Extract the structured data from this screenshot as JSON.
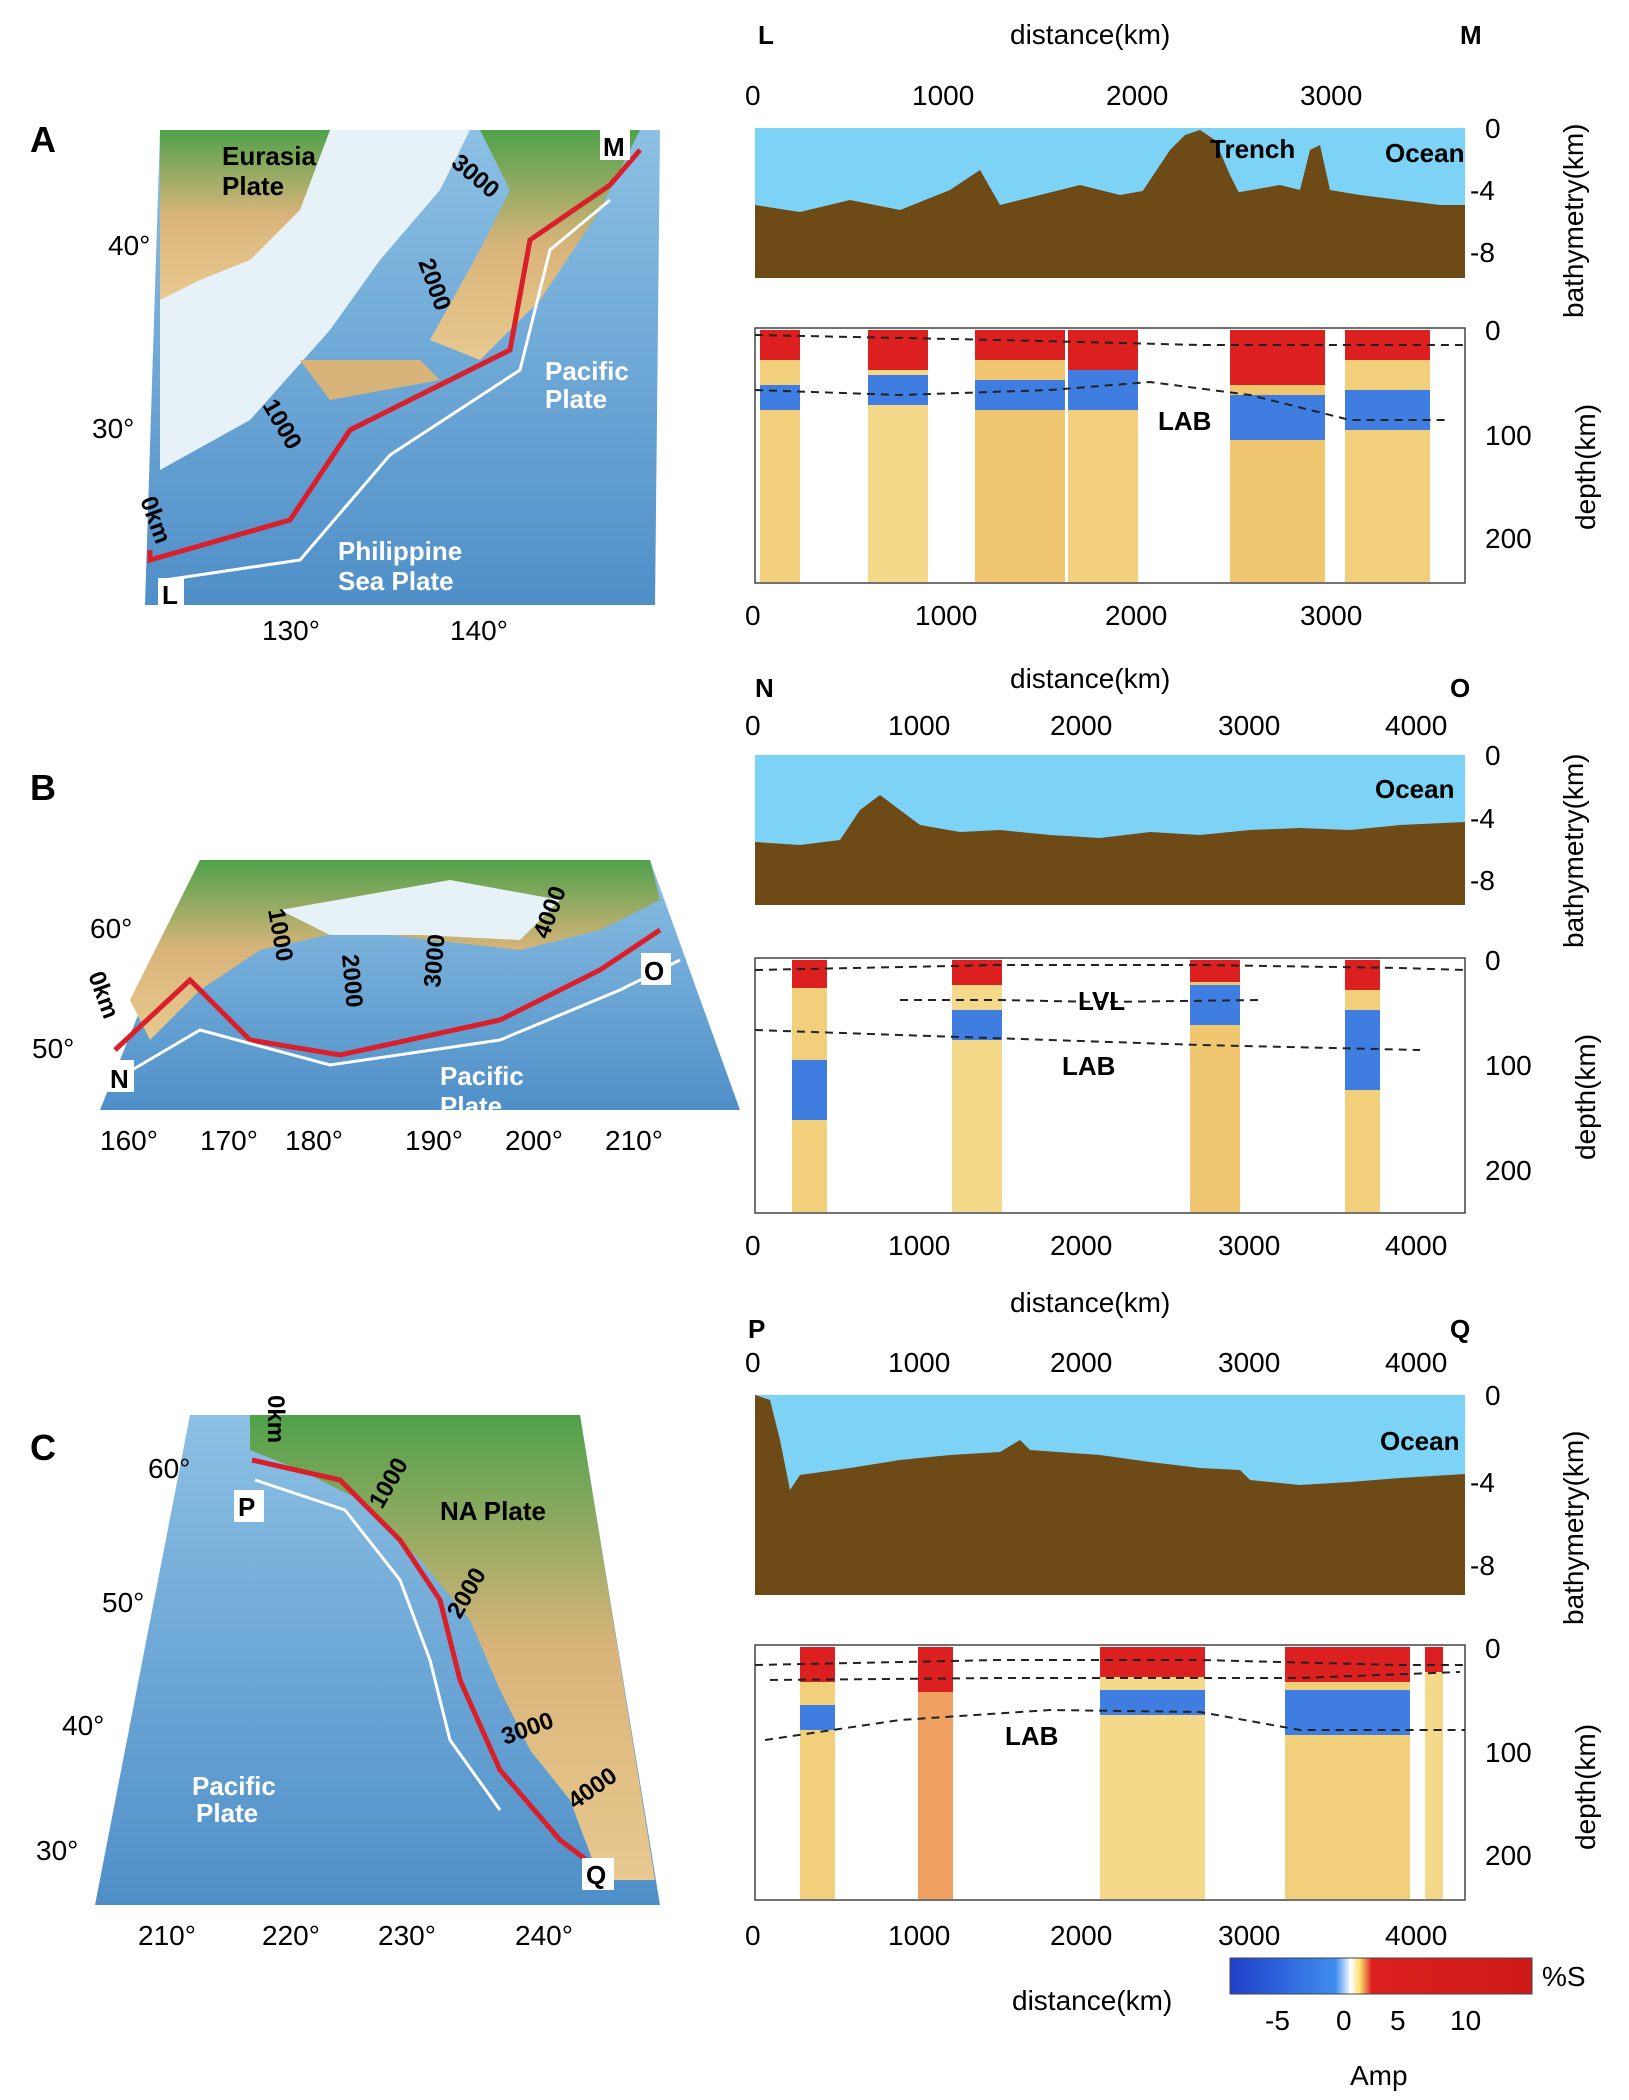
{
  "colors": {
    "water": "#7dd3f5",
    "earth": "#6e4a16",
    "ocean_map": "#6fa8d6",
    "land_map": "#d8b97a",
    "trench": "#d81f2a",
    "pos": "#dc1f1f",
    "neg": "#2b57d6"
  },
  "panels": [
    {
      "letter": "A",
      "map": {
        "lat_ticks": [
          "40°",
          "30°"
        ],
        "lon_ticks": [
          "130°",
          "140°"
        ],
        "plate_labels": [
          "Eurasia",
          "Plate",
          "Pacific",
          "Plate",
          "Philippine",
          "Sea Plate"
        ],
        "dist_labels": [
          "0km",
          "1000",
          "2000",
          "3000"
        ],
        "end_start": "L",
        "end_stop": "M"
      },
      "profile": {
        "start": "L",
        "end": "M",
        "top_axis_label": "distance(km)",
        "top_ticks": [
          "0",
          "1000",
          "2000",
          "3000"
        ],
        "bathy_ticks": [
          "0",
          "-4",
          "-8"
        ],
        "bathy_label": "bathymetry(km)",
        "depth_ticks": [
          "0",
          "100",
          "200"
        ],
        "depth_label": "depth(km)",
        "bottom_ticks": [
          "0",
          "1000",
          "2000",
          "3000"
        ],
        "annotations": [
          "Trench",
          "Ocean",
          "LAB"
        ],
        "bottom_axis_label": ""
      }
    },
    {
      "letter": "B",
      "map": {
        "lat_ticks": [
          "60°",
          "50°"
        ],
        "lon_ticks": [
          "160°",
          "170°",
          "180°",
          "190°",
          "200°",
          "210°"
        ],
        "plate_labels": [
          "Pacific",
          "Plate"
        ],
        "dist_labels": [
          "0km",
          "1000",
          "2000",
          "3000",
          "4000"
        ],
        "end_start": "N",
        "end_stop": "O"
      },
      "profile": {
        "start": "N",
        "end": "O",
        "top_axis_label": "distance(km)",
        "top_ticks": [
          "0",
          "1000",
          "2000",
          "3000",
          "4000"
        ],
        "bathy_ticks": [
          "0",
          "-4",
          "-8"
        ],
        "bathy_label": "bathymetry(km)",
        "depth_ticks": [
          "0",
          "100",
          "200"
        ],
        "depth_label": "depth(km)",
        "bottom_ticks": [
          "0",
          "1000",
          "2000",
          "3000",
          "4000"
        ],
        "annotations": [
          "Ocean",
          "LVL",
          "LAB"
        ],
        "bottom_axis_label": ""
      }
    },
    {
      "letter": "C",
      "map": {
        "lat_ticks": [
          "60°",
          "50°",
          "40°",
          "30°"
        ],
        "lon_ticks": [
          "210°",
          "220°",
          "230°",
          "240°"
        ],
        "plate_labels": [
          "NA Plate",
          "Pacific",
          "Plate"
        ],
        "dist_labels": [
          "0km",
          "1000",
          "2000",
          "3000",
          "4000"
        ],
        "end_start": "P",
        "end_stop": "Q"
      },
      "profile": {
        "start": "P",
        "end": "Q",
        "top_axis_label": "distance(km)",
        "top_ticks": [
          "0",
          "1000",
          "2000",
          "3000",
          "4000"
        ],
        "bathy_ticks": [
          "0",
          "-4",
          "-8"
        ],
        "bathy_label": "bathymetry(km)",
        "depth_ticks": [
          "0",
          "100",
          "200"
        ],
        "depth_label": "depth(km)",
        "bottom_ticks": [
          "0",
          "1000",
          "2000",
          "3000",
          "4000"
        ],
        "annotations": [
          "Ocean",
          "LAB"
        ],
        "bottom_axis_label": "distance(km)"
      }
    }
  ],
  "colorbar": {
    "ticks": [
      "-5",
      "0",
      "5",
      "10"
    ],
    "unit": "%S",
    "label": "Amp"
  }
}
